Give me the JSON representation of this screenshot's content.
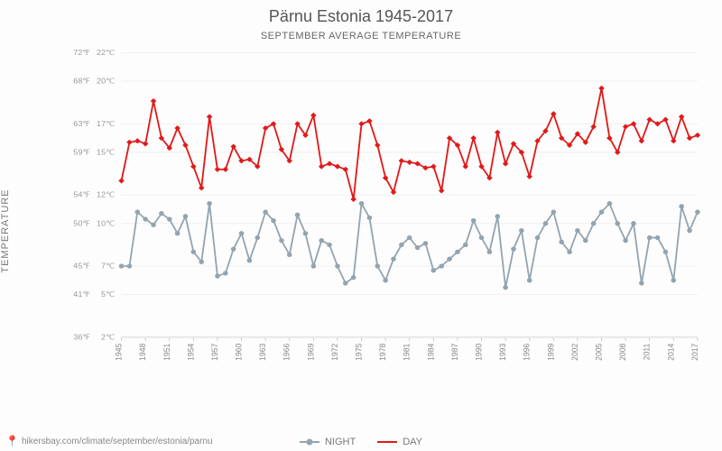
{
  "title": "Pärnu Estonia 1945-2017",
  "subtitle": "SEPTEMBER AVERAGE TEMPERATURE",
  "y_axis_label": "TEMPERATURE",
  "source_url": "hikersbay.com/climate/september/estonia/parnu",
  "chart": {
    "type": "line",
    "background_color": "#fdfdfd",
    "grid_color": "#eeeeee",
    "axis_color": "#cccccc",
    "title_fontsize": 18,
    "subtitle_fontsize": 11,
    "tick_fontsize": 10,
    "x": {
      "min": 1945,
      "max": 2017,
      "tick_step": 3,
      "label_rotation": -90
    },
    "y_celsius": {
      "min": 2,
      "max": 22,
      "ticks": [
        2,
        5,
        7,
        10,
        12,
        15,
        17,
        20,
        22
      ],
      "tick_colors": [
        "#6fa84f",
        "#6fa84f",
        "#6fa84f",
        "#6fa84f",
        "#98a050",
        "#98a050",
        "#c06060",
        "#c93a6a",
        "#c93a6a"
      ]
    },
    "y_fahrenheit_ticks": [
      36,
      41,
      45,
      50,
      54,
      59,
      63,
      68,
      72
    ],
    "series": [
      {
        "name": "NIGHT",
        "color": "#93a4b0",
        "marker": "circle",
        "marker_size": 4,
        "line_width": 2,
        "values": [
          7.0,
          7.0,
          10.8,
          10.3,
          9.9,
          10.7,
          10.3,
          9.3,
          10.5,
          8.0,
          7.3,
          11.4,
          6.3,
          6.5,
          8.2,
          9.3,
          7.4,
          9.0,
          10.8,
          10.2,
          8.8,
          7.8,
          10.6,
          9.3,
          7.0,
          8.8,
          8.5,
          7.0,
          5.8,
          6.2,
          11.4,
          10.4,
          7.0,
          6.0,
          7.5,
          8.5,
          9.0,
          8.3,
          8.6,
          6.7,
          7.0,
          7.5,
          8.0,
          8.5,
          10.2,
          9.0,
          8.0,
          10.5,
          5.5,
          8.2,
          9.5,
          6.0,
          9.0,
          10.0,
          10.8,
          8.7,
          8.0,
          9.5,
          8.8,
          10.0,
          10.8,
          11.4,
          10.0,
          8.8,
          10.0,
          5.8,
          9.0,
          9.0,
          8.0,
          6.0,
          11.2,
          9.5,
          10.8
        ]
      },
      {
        "name": "DAY",
        "color": "#e21818",
        "marker": "diamond",
        "marker_size": 5,
        "line_width": 2,
        "values": [
          13.0,
          15.7,
          15.8,
          15.6,
          18.6,
          16.0,
          15.3,
          16.7,
          15.5,
          14.0,
          12.5,
          17.5,
          13.8,
          13.8,
          15.4,
          14.4,
          14.5,
          14.0,
          16.7,
          17.0,
          15.2,
          14.4,
          17.0,
          16.2,
          17.6,
          14.0,
          14.2,
          14.0,
          13.8,
          11.7,
          17.0,
          17.2,
          15.5,
          13.2,
          12.2,
          14.4,
          14.3,
          14.2,
          13.9,
          14.0,
          12.3,
          16.0,
          15.5,
          14.0,
          16.0,
          14.0,
          13.2,
          16.4,
          14.2,
          15.6,
          15.0,
          13.3,
          15.8,
          16.5,
          17.7,
          16.0,
          15.5,
          16.3,
          15.7,
          16.8,
          19.5,
          16.0,
          15.0,
          16.8,
          17.0,
          15.8,
          17.3,
          17.0,
          17.3,
          15.8,
          17.5,
          16.0,
          16.2
        ]
      }
    ]
  },
  "legend": {
    "night": "NIGHT",
    "day": "DAY"
  }
}
